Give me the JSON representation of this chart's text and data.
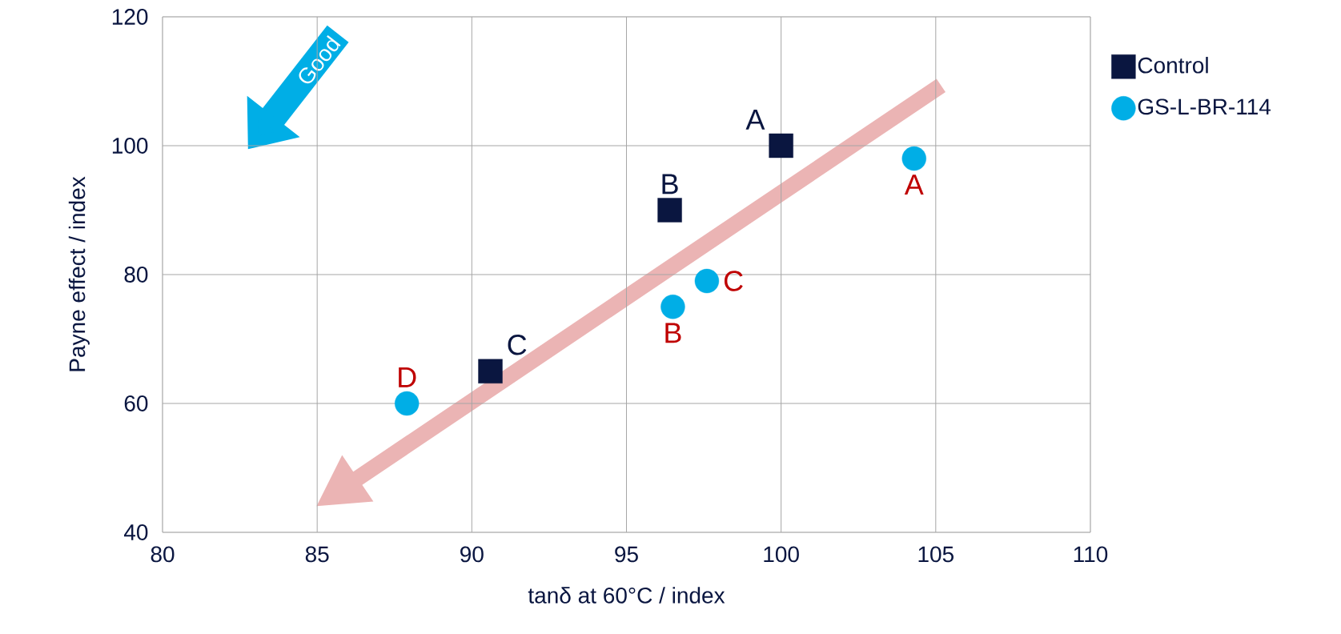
{
  "chart_data": {
    "type": "scatter",
    "xlabel": "tanδ at 60°C / index",
    "ylabel": "Payne effect / index",
    "xlim": [
      80,
      110
    ],
    "xticks": [
      80,
      85,
      90,
      95,
      100,
      105,
      110
    ],
    "ylim": [
      40,
      120
    ],
    "yticks": [
      40,
      60,
      80,
      100,
      120
    ],
    "grid": true,
    "legend": "right",
    "series": [
      {
        "name": "Control",
        "color": "#0a1640",
        "marker": "square",
        "x": [
          100.0,
          96.4,
          90.6
        ],
        "values": [
          100,
          90,
          65
        ]
      },
      {
        "name": "GS-L-BR-114",
        "color": "#00aee6",
        "marker": "circle",
        "x": [
          104.3,
          96.5,
          97.6,
          87.9
        ],
        "values": [
          98,
          75,
          79,
          60
        ]
      }
    ],
    "annotations": [
      {
        "text": "A",
        "x": 100.0,
        "y": 100
      },
      {
        "text": "B",
        "x": 96.4,
        "y": 90
      },
      {
        "text": "C",
        "x": 90.6,
        "y": 65
      },
      {
        "text": "A",
        "x": 104.3,
        "y": 98
      },
      {
        "text": "B",
        "x": 96.5,
        "y": 75
      },
      {
        "text": "C",
        "x": 97.6,
        "y": 79
      },
      {
        "text": "D",
        "x": 87.9,
        "y": 60
      },
      "Good"
    ]
  }
}
